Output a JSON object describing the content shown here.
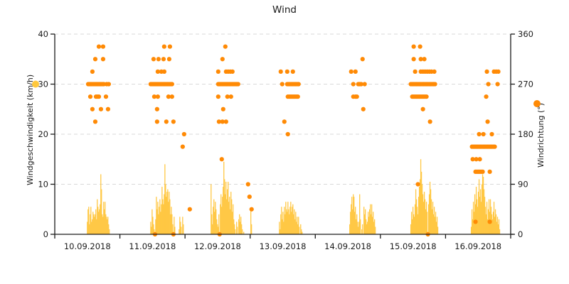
{
  "title": "Wind",
  "chart_data": {
    "type": "mixed",
    "title": "Wind",
    "grid": true,
    "x_axis": {
      "categories": [
        "10.09.2018",
        "11.09.2018",
        "12.09.2018",
        "13.09.2018",
        "14.09.2018",
        "15.09.2018",
        "16.09.2018"
      ],
      "days": 7
    },
    "left_axis": {
      "label": "Windgeschwindigkeit (km/h)",
      "ticks": [
        0,
        10,
        20,
        30,
        40
      ],
      "range": [
        0,
        40
      ],
      "marker_color": "#FFC83C"
    },
    "right_axis": {
      "label": "Windrichtung (°)",
      "ticks": [
        0,
        90,
        180,
        270,
        360
      ],
      "range": [
        0,
        360
      ],
      "marker_color": "#FF8A05"
    },
    "series": [
      {
        "name": "Windgeschwindigkeit",
        "type": "bar",
        "unit": "km/h",
        "color": "#FFC53C",
        "day_profiles": [
          {
            "day": 0,
            "start": 0.5,
            "step": 0.0109,
            "heights": [
              2.5,
              5,
              5.5,
              2,
              4,
              5.5,
              2.5,
              3,
              4.5,
              4,
              3.5,
              4,
              5,
              3,
              7,
              5.5,
              4.5,
              5,
              6,
              12,
              9,
              4,
              3.5,
              6.5,
              5,
              6.5,
              4,
              3.5,
              3,
              3.5,
              2,
              1
            ]
          },
          {
            "day": 1,
            "start": 0.473,
            "step": 0.0109,
            "heights": [
              2.5,
              1.5,
              5,
              3.5,
              2,
              1,
              0.5,
              3,
              7.5,
              5,
              6.5,
              4,
              5.5,
              7,
              4.5,
              6,
              9.5,
              7,
              6,
              8,
              14,
              10,
              7.5,
              8.5,
              9,
              6.5,
              8.5,
              7,
              4,
              5.5,
              4,
              2,
              0.5,
              3.5,
              1.5,
              0,
              0,
              0,
              0,
              0,
              1,
              3.5,
              2.5,
              1.5,
              0,
              3.5,
              2
            ]
          },
          {
            "day": 2,
            "start": 0.4,
            "step": 0.0109,
            "heights": [
              10,
              4,
              2,
              5.5,
              7,
              4.5,
              6.5,
              5,
              3,
              2,
              1.5,
              4,
              0.5,
              6,
              8,
              5.5,
              7.5,
              9.5,
              14.5,
              11,
              8,
              10.5,
              7,
              9,
              10.5,
              6.5,
              7.5,
              5,
              8.5,
              7,
              4.5,
              6,
              3,
              2,
              1,
              0,
              2.5,
              1.5,
              0,
              3,
              4,
              2.5,
              3.5,
              2,
              1,
              0,
              0.5,
              0,
              0,
              0,
              0,
              0,
              0,
              0,
              0,
              0,
              5,
              2
            ]
          },
          {
            "day": 3,
            "start": 0.449,
            "step": 0.0109,
            "heights": [
              2.5,
              1,
              4,
              5.5,
              3,
              4.5,
              2.5,
              5.5,
              4,
              6.5,
              5,
              4.5,
              6.5,
              5,
              4,
              5.5,
              6.5,
              4.5,
              5.5,
              6,
              4,
              5,
              3,
              4.5,
              2.5,
              3.5,
              2,
              3.5,
              1.5,
              0,
              2,
              1,
              0.5
            ]
          },
          {
            "day": 4,
            "start": 0.529,
            "step": 0.0109,
            "heights": [
              2,
              4.5,
              6,
              7.5,
              5,
              8,
              7.5,
              4.5,
              5.5,
              3,
              4,
              2.5,
              1.5,
              2.5,
              8,
              3,
              0,
              1,
              2,
              0,
              5.5,
              4,
              5,
              3,
              2,
              2.5,
              4.5,
              3.5,
              5,
              6,
              4,
              6,
              3.5,
              4.5,
              2.5,
              3,
              1.5
            ]
          },
          {
            "day": 5,
            "start": 0.467,
            "step": 0.0109,
            "heights": [
              2,
              4.5,
              3,
              5.5,
              4,
              3.5,
              6,
              9,
              7,
              5.5,
              4,
              7.5,
              9.5,
              11,
              15,
              12.5,
              10,
              8,
              6.5,
              8.5,
              7,
              5,
              6.5,
              4.5,
              0.5,
              6,
              8,
              10.5,
              9,
              7,
              5,
              6.5,
              4,
              5.5,
              3.5,
              4.5,
              2.5,
              3.5,
              1.5
            ]
          },
          {
            "day": 6,
            "start": 0.395,
            "step": 0.0109,
            "heights": [
              1.5,
              5,
              3,
              6.5,
              4.5,
              8,
              6,
              9.5,
              7,
              5.5,
              8.5,
              11,
              7.5,
              9,
              6.5,
              10,
              12,
              11.5,
              9,
              7.5,
              5.5,
              4,
              6.5,
              3,
              5,
              7,
              4.5,
              7,
              5.5,
              4,
              3,
              4.5,
              6.5,
              3.5,
              5,
              4,
              2.5,
              3.5,
              2,
              3,
              1
            ]
          }
        ]
      },
      {
        "name": "Windrichtung",
        "type": "scatter",
        "unit": "°",
        "color": "#FF8A05",
        "levels": [
          {
            "deg": 337.5,
            "u": [
              0.677,
              0.742,
              1.68,
              1.768,
              2.619,
              5.511,
              5.609
            ]
          },
          {
            "deg": 315,
            "u": [
              0.622,
              0.742,
              1.517,
              1.593,
              1.67,
              1.757,
              2.575,
              4.726,
              5.511,
              5.62,
              5.674
            ]
          },
          {
            "deg": 292.5,
            "u": [
              0.578,
              1.582,
              1.637,
              1.681,
              2.51,
              2.63,
              2.662,
              2.695,
              2.728,
              3.47,
              3.569,
              3.656,
              4.551,
              4.617,
              5.533,
              5.62,
              5.653,
              5.685,
              5.718,
              5.751,
              5.784,
              5.827,
              6.635,
              6.744,
              6.777,
              6.81
            ]
          },
          {
            "deg": 270,
            "u": [
              0.513,
              0.535,
              0.557,
              0.578,
              0.6,
              0.622,
              0.644,
              0.666,
              0.688,
              0.709,
              0.731,
              0.753,
              0.797,
              0.829,
              1.473,
              1.495,
              1.517,
              1.539,
              1.56,
              1.582,
              1.604,
              1.626,
              1.648,
              1.67,
              1.691,
              1.713,
              1.735,
              1.757,
              1.779,
              1.8,
              2.51,
              2.531,
              2.553,
              2.575,
              2.597,
              2.619,
              2.641,
              2.662,
              2.684,
              2.706,
              2.728,
              2.75,
              2.771,
              2.793,
              2.815,
              3.492,
              3.569,
              3.59,
              3.612,
              3.634,
              3.656,
              3.678,
              3.699,
              3.721,
              3.743,
              4.584,
              4.66,
              4.682,
              4.704,
              4.758,
              5.467,
              5.489,
              5.511,
              5.533,
              5.554,
              5.576,
              5.598,
              5.62,
              5.642,
              5.663,
              5.685,
              5.707,
              5.729,
              5.751,
              5.773,
              5.794,
              5.816,
              5.838,
              6.657,
              6.799
            ]
          },
          {
            "deg": 247.5,
            "u": [
              0.546,
              0.633,
              0.655,
              0.677,
              0.786,
              1.528,
              1.582,
              1.746,
              1.8,
              2.51,
              2.651,
              2.706,
              3.579,
              3.601,
              3.623,
              3.645,
              3.667,
              3.688,
              3.71,
              3.732,
              4.584,
              4.617,
              4.638,
              5.489,
              5.511,
              5.533,
              5.554,
              5.576,
              5.598,
              5.62,
              5.642,
              5.663,
              5.685,
              5.707,
              6.624
            ]
          },
          {
            "deg": 225,
            "u": [
              0.578,
              0.709,
              0.818,
              1.571,
              2.586,
              4.737,
              5.653
            ]
          },
          {
            "deg": 202.5,
            "u": [
              0.622,
              1.571,
              1.713,
              1.822,
              2.521,
              2.575,
              2.63,
              3.525,
              5.762,
              6.646
            ]
          },
          {
            "deg": 180,
            "u": [
              1.986,
              3.579,
              6.515,
              6.581,
              6.711
            ]
          },
          {
            "deg": 157.5,
            "u": [
              1.964,
              6.406,
              6.428,
              6.45,
              6.471,
              6.493,
              6.515,
              6.537,
              6.559,
              6.581,
              6.602,
              6.624,
              6.646,
              6.668,
              6.69,
              6.711,
              6.733,
              6.755
            ]
          },
          {
            "deg": 135,
            "u": [
              2.564,
              6.417,
              6.471,
              6.526
            ]
          },
          {
            "deg": 112.5,
            "u": [
              6.46,
              6.482,
              6.504,
              6.526,
              6.548,
              6.57,
              6.679
            ]
          },
          {
            "deg": 90,
            "u": [
              2.968,
              5.576
            ]
          },
          {
            "deg": 67.5,
            "u": [
              2.99
            ]
          },
          {
            "deg": 45,
            "u": [
              2.073,
              3.022
            ]
          },
          {
            "deg": 22.5,
            "u": [
              6.46,
              6.679
            ]
          },
          {
            "deg": 0,
            "u": [
              1.539,
              1.822,
              2.531,
              5.729
            ]
          }
        ]
      }
    ],
    "colors": {
      "axis": "#1a1a1a",
      "grid": "#d8d8d8",
      "text": "#1a1a1a"
    }
  }
}
